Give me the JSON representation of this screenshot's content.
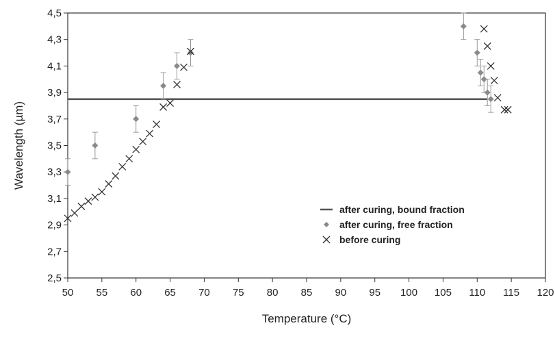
{
  "chart_data": {
    "type": "scatter",
    "xlabel": "Temperature (°C)",
    "ylabel": "Wavelength  (µm)",
    "xlim": [
      50,
      120
    ],
    "ylim": [
      2.5,
      4.5
    ],
    "x_ticks": [
      "50",
      "55",
      "60",
      "65",
      "70",
      "75",
      "80",
      "85",
      "90",
      "95",
      "100",
      "105",
      "110",
      "115",
      "120"
    ],
    "y_ticks": [
      "2,5",
      "2,7",
      "2,9",
      "3,1",
      "3,3",
      "3,5",
      "3,7",
      "3,9",
      "4,1",
      "4,3",
      "4,5"
    ],
    "legend_position": "bottom-right",
    "series": [
      {
        "name": "after curing, bound fraction",
        "marker": "line",
        "color": "#555555",
        "x": [
          50,
          111.5
        ],
        "y": [
          3.85,
          3.85
        ]
      },
      {
        "name": "after curing, free fraction",
        "marker": "diamond",
        "color": "#8a8a8a",
        "x": [
          50,
          54,
          60,
          64,
          66,
          68,
          108,
          110,
          110.5,
          111,
          111.5,
          112
        ],
        "y": [
          3.3,
          3.5,
          3.7,
          3.95,
          4.1,
          4.2,
          4.4,
          4.2,
          4.05,
          4.0,
          3.9,
          3.85
        ],
        "error": [
          0.1,
          0.1,
          0.1,
          0.1,
          0.1,
          0.1,
          0.1,
          0.1,
          0.1,
          0.1,
          0.1,
          0.1
        ]
      },
      {
        "name": "before curing",
        "marker": "x",
        "color": "#333333",
        "x": [
          50,
          51,
          52,
          53,
          54,
          55,
          56,
          57,
          58,
          59,
          60,
          61,
          62,
          63,
          64,
          65,
          66,
          67,
          68,
          111,
          111.5,
          112,
          112.5,
          113,
          114,
          114.5
        ],
        "y": [
          2.95,
          2.99,
          3.04,
          3.08,
          3.11,
          3.15,
          3.21,
          3.27,
          3.34,
          3.4,
          3.47,
          3.53,
          3.59,
          3.66,
          3.79,
          3.82,
          3.96,
          4.09,
          4.21,
          4.38,
          4.25,
          4.1,
          3.99,
          3.86,
          3.77,
          3.77
        ]
      }
    ]
  }
}
